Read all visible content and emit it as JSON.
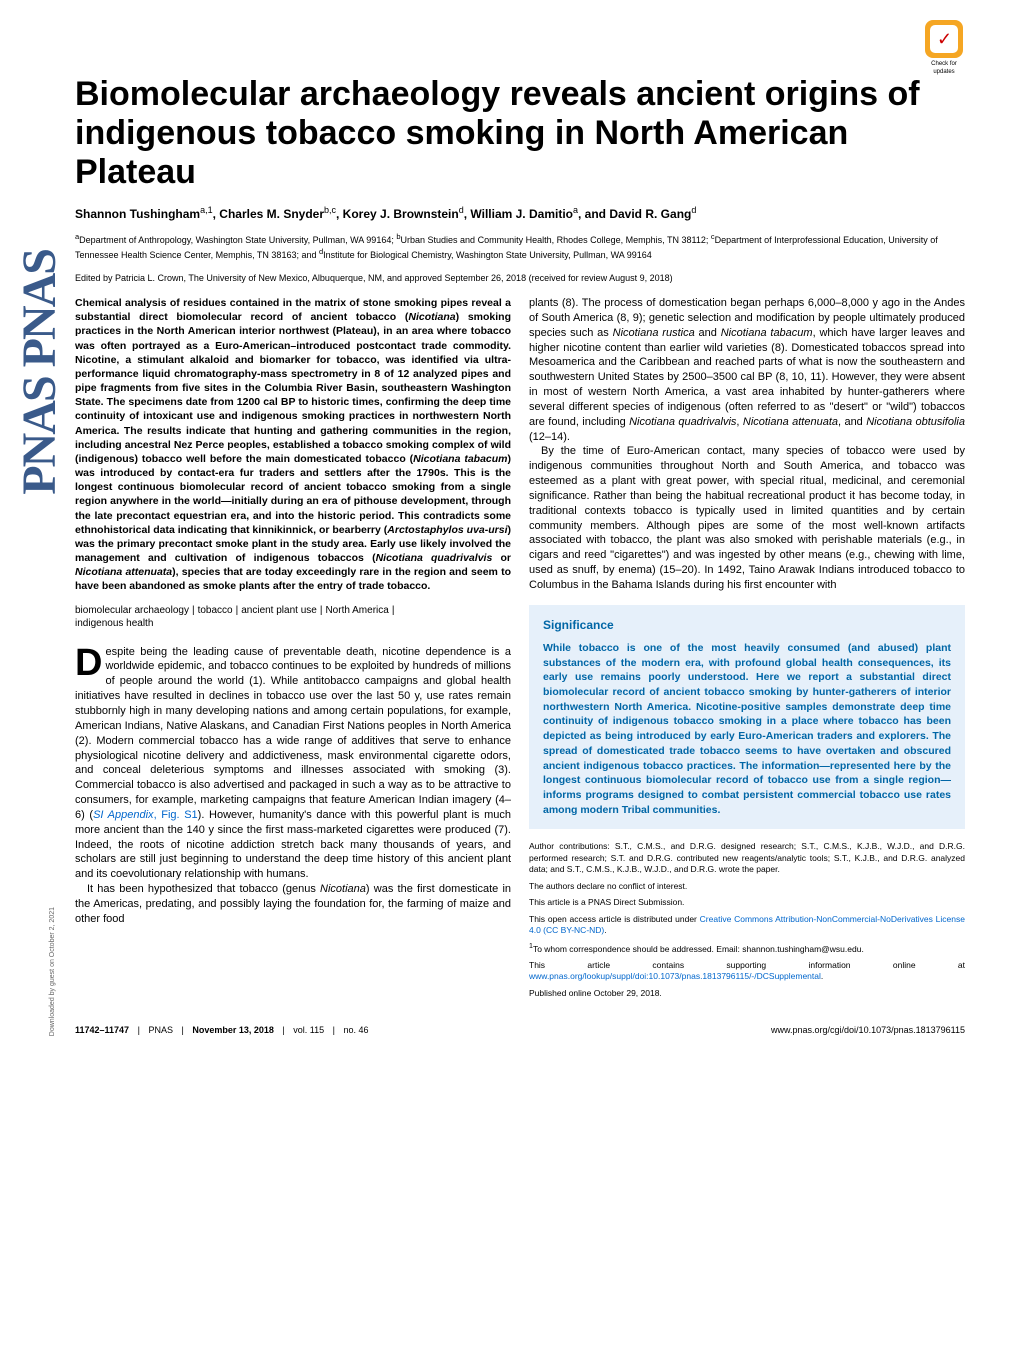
{
  "badge": {
    "label": "Check for updates"
  },
  "title": "Biomolecular archaeology reveals ancient origins of indigenous tobacco smoking in North American Plateau",
  "authors_html": "Shannon Tushingham<sup>a,1</sup>, Charles M. Snyder<sup>b,c</sup>, Korey J. Brownstein<sup>d</sup>, William J. Damitio<sup>a</sup>, and David R. Gang<sup>d</sup>",
  "affiliations": "<sup>a</sup>Department of Anthropology, Washington State University, Pullman, WA 99164; <sup>b</sup>Urban Studies and Community Health, Rhodes College, Memphis, TN 38112; <sup>c</sup>Department of Interprofessional Education, University of Tennessee Health Science Center, Memphis, TN 38163; and <sup>d</sup>Institute for Biological Chemistry, Washington State University, Pullman, WA 99164",
  "edited": "Edited by Patricia L. Crown, The University of New Mexico, Albuquerque, NM, and approved September 26, 2018 (received for review August 9, 2018)",
  "abstract": "Chemical analysis of residues contained in the matrix of stone smoking pipes reveal a substantial direct biomolecular record of ancient tobacco (<i>Nicotiana</i>) smoking practices in the North American interior northwest (Plateau), in an area where tobacco was often portrayed as a Euro-American–introduced postcontact trade commodity. Nicotine, a stimulant alkaloid and biomarker for tobacco, was identified via ultra-performance liquid chromatography-mass spectrometry in 8 of 12 analyzed pipes and pipe fragments from five sites in the Columbia River Basin, southeastern Washington State. The specimens date from 1200 cal BP to historic times, confirming the deep time continuity of intoxicant use and indigenous smoking practices in northwestern North America. The results indicate that hunting and gathering communities in the region, including ancestral Nez Perce peoples, established a tobacco smoking complex of wild (indigenous) tobacco well before the main domesticated tobacco (<i>Nicotiana tabacum</i>) was introduced by contact-era fur traders and settlers after the 1790s. This is the longest continuous biomolecular record of ancient tobacco smoking from a single region anywhere in the world—initially during an era of pithouse development, through the late precontact equestrian era, and into the historic period. This contradicts some ethnohistorical data indicating that kinnikinnick, or bearberry (<i>Arctostaphylos uva-ursi</i>) was the primary precontact smoke plant in the study area. Early use likely involved the management and cultivation of indigenous tobaccos (<i>Nicotiana quadrivalvis</i> or <i>Nicotiana attenuata</i>), species that are today exceedingly rare in the region and seem to have been abandoned as smoke plants after the entry of trade tobacco.",
  "keywords": [
    "biomolecular archaeology",
    "tobacco",
    "ancient plant use",
    "North America",
    "indigenous health"
  ],
  "left_body": {
    "p1_dropcap": "D",
    "p1": "espite being the leading cause of preventable death, nicotine dependence is a worldwide epidemic, and tobacco continues to be exploited by hundreds of millions of people around the world (1). While antitobacco campaigns and global health initiatives have resulted in declines in tobacco use over the last 50 y, use rates remain stubbornly high in many developing nations and among certain populations, for example, American Indians, Native Alaskans, and Canadian First Nations peoples in North America (2). Modern commercial tobacco has a wide range of additives that serve to enhance physiological nicotine delivery and addictiveness, mask environmental cigarette odors, and conceal deleterious symptoms and illnesses associated with smoking (3). Commercial tobacco is also advertised and packaged in such a way as to be attractive to consumers, for example, marketing campaigns that feature American Indian imagery (4–6) (<a href='#'><i>SI Appendix</i>, Fig. S1</a>). However, humanity's dance with this powerful plant is much more ancient than the 140 y since the first mass-marketed cigarettes were produced (7). Indeed, the roots of nicotine addiction stretch back many thousands of years, and scholars are still just beginning to understand the deep time history of this ancient plant and its coevolutionary relationship with humans.",
    "p2": "It has been hypothesized that tobacco (genus <i>Nicotiana</i>) was the first domesticate in the Americas, predating, and possibly laying the foundation for, the farming of maize and other food"
  },
  "right_body": {
    "p1": "plants (8). The process of domestication began perhaps 6,000–8,000 y ago in the Andes of South America (8, 9); genetic selection and modification by people ultimately produced species such as <i>Nicotiana rustica</i> and <i>Nicotiana tabacum</i>, which have larger leaves and higher nicotine content than earlier wild varieties (8). Domesticated tobaccos spread into Mesoamerica and the Caribbean and reached parts of what is now the southeastern and southwestern United States by 2500–3500 cal BP (8, 10, 11). However, they were absent in most of western North America, a vast area inhabited by hunter-gatherers where several different species of indigenous (often referred to as \"desert\" or \"wild\") tobaccos are found, including <i>Nicotiana quadrivalvis</i>, <i>Nicotiana attenuata</i>, and <i>Nicotiana obtusifolia</i> (12–14).",
    "p2": "By the time of Euro-American contact, many species of tobacco were used by indigenous communities throughout North and South America, and tobacco was esteemed as a plant with great power, with special ritual, medicinal, and ceremonial significance. Rather than being the habitual recreational product it has become today, in traditional contexts tobacco is typically used in limited quantities and by certain community members. Although pipes are some of the most well-known artifacts associated with tobacco, the plant was also smoked with perishable materials (e.g., in cigars and reed \"cigarettes\") and was ingested by other means (e.g., chewing with lime, used as snuff, by enema) (15–20). In 1492, Taino Arawak Indians introduced tobacco to Columbus in the Bahama Islands during his first encounter with"
  },
  "significance": {
    "heading": "Significance",
    "text": "While tobacco is one of the most heavily consumed (and abused) plant substances of the modern era, with profound global health consequences, its early use remains poorly understood. Here we report a substantial direct biomolecular record of ancient tobacco smoking by hunter-gatherers of interior northwestern North America. Nicotine-positive samples demonstrate deep time continuity of indigenous tobacco smoking in a place where tobacco has been depicted as being introduced by early Euro-American traders and explorers. The spread of domesticated trade tobacco seems to have overtaken and obscured ancient indigenous tobacco practices. The information—represented here by the longest continuous biomolecular record of tobacco use from a single region—informs programs designed to combat persistent commercial tobacco use rates among modern Tribal communities."
  },
  "footnotes": {
    "contrib": "Author contributions: S.T., C.M.S., and D.R.G. designed research; S.T., C.M.S., K.J.B., W.J.D., and D.R.G. performed research; S.T. and D.R.G. contributed new reagents/analytic tools; S.T., K.J.B., and D.R.G. analyzed data; and S.T., C.M.S., K.J.B., W.J.D., and D.R.G. wrote the paper.",
    "conflict": "The authors declare no conflict of interest.",
    "submission": "This article is a PNAS Direct Submission.",
    "license": "This open access article is distributed under <a href='#'>Creative Commons Attribution-NonCommercial-NoDerivatives License 4.0 (CC BY-NC-ND)</a>.",
    "corresponding": "<sup>1</sup>To whom correspondence should be addressed. Email: shannon.tushingham@wsu.edu.",
    "supporting": "This article contains supporting information online at <a href='#'>www.pnas.org/lookup/suppl/doi:10.1073/pnas.1813796115/-/DCSupplemental</a>.",
    "published": "Published online October 29, 2018."
  },
  "footer": {
    "pages": "11742–11747",
    "journal": "PNAS",
    "date": "November 13, 2018",
    "vol": "vol. 115",
    "no": "no. 46",
    "doi": "www.pnas.org/cgi/doi/10.1073/pnas.1813796115"
  },
  "vertical_label": "PNAS PNAS",
  "download_note": "Downloaded by guest on October 2, 2021"
}
